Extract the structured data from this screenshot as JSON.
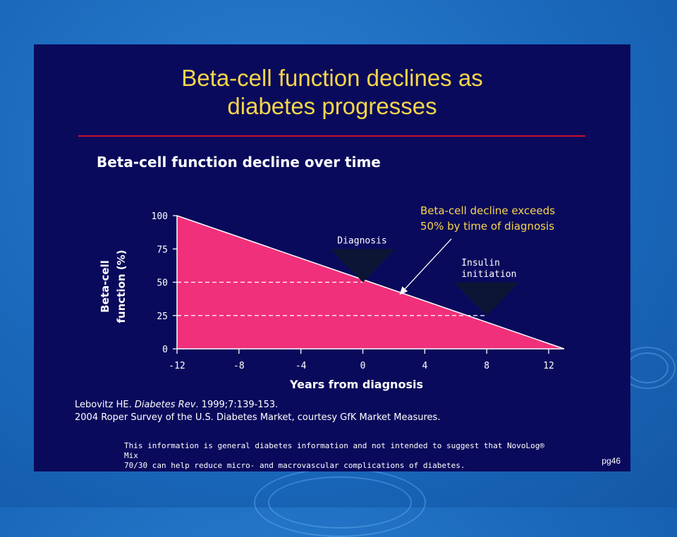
{
  "slide": {
    "title_line1": "Beta-cell function declines as",
    "title_line2": "diabetes progresses",
    "subtitle": "Beta-cell function decline over time",
    "references": {
      "line1_author": "Lebovitz HE. ",
      "line1_journal": "Diabetes Rev",
      "line1_rest": ". 1999;7:139-153.",
      "line2": "2004 Roper Survey of the U.S. Diabetes Market, courtesy GfK Market Measures."
    },
    "disclaimer_line1": "This information is general diabetes information and not intended to suggest that NovoLog® Mix",
    "disclaimer_line2": "70/30 can help reduce micro- and macrovascular complications of diabetes.",
    "page_label": "pg46"
  },
  "colors": {
    "background": "#1a68bb",
    "slide": "#0a0a5c",
    "title": "#f7d64a",
    "rule": "#c8102e",
    "area": "#f0307a",
    "marker": "#0a1633",
    "text": "#ffffff"
  },
  "chart_data": {
    "type": "area",
    "title": "Beta-cell function decline over time",
    "xlabel": "Years from diagnosis",
    "ylabel_line1": "Beta-cell",
    "ylabel_line2": "function (%)",
    "x": [
      -12,
      13
    ],
    "y": [
      100,
      0
    ],
    "xlim": [
      -12,
      13
    ],
    "ylim": [
      0,
      100
    ],
    "xticks": [
      -12,
      -8,
      -4,
      0,
      4,
      8,
      12
    ],
    "yticks": [
      0,
      25,
      50,
      75,
      100
    ],
    "reference_lines": [
      {
        "y": 50,
        "x_end": 0
      },
      {
        "y": 25,
        "x_end": 8
      }
    ],
    "markers": [
      {
        "label_lines": [
          "Diagnosis"
        ],
        "x": 0,
        "y": 50
      },
      {
        "label_lines": [
          "Insulin",
          "initiation"
        ],
        "x": 8,
        "y": 25
      }
    ],
    "callout": {
      "lines": [
        "Beta-cell decline exceeds",
        "50% by time of diagnosis"
      ],
      "point_x": 2.4,
      "point_y": 41
    }
  }
}
